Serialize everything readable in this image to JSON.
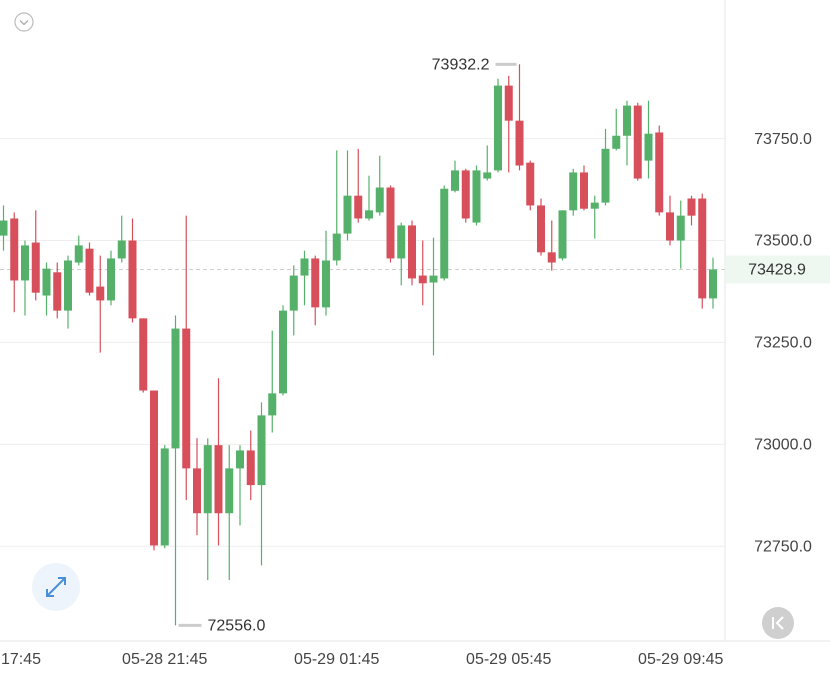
{
  "chart_data": {
    "type": "candlestick",
    "categories": [
      "17:45",
      null,
      null,
      null,
      null,
      null,
      null,
      null,
      null,
      null,
      null,
      null,
      null,
      null,
      null,
      "05-28 21:45",
      null,
      null,
      null,
      null,
      null,
      null,
      null,
      null,
      null,
      null,
      null,
      null,
      null,
      null,
      null,
      "05-29 01:45",
      null,
      null,
      null,
      null,
      null,
      null,
      null,
      null,
      null,
      null,
      null,
      null,
      null,
      null,
      null,
      "05-29 05:45",
      null,
      null,
      null,
      null,
      null,
      null,
      null,
      null,
      null,
      null,
      null,
      null,
      null,
      null,
      null,
      "05-29 09:45",
      null,
      null,
      null
    ],
    "open": [
      73512,
      73554,
      73402,
      73495,
      73365,
      73422,
      73328,
      73446,
      73480,
      73387,
      73353,
      73456,
      73500,
      73309,
      73132,
      72752,
      72990,
      73284,
      72941,
      72831,
      72998,
      72831,
      72941,
      72985,
      72900,
      73071,
      73125,
      73328,
      73414,
      73456,
      73336,
      73451,
      73517,
      73610,
      73554,
      73569,
      73630,
      73456,
      73537,
      73414,
      73397,
      73407,
      73622,
      73672,
      73544,
      73652,
      73672,
      73880,
      73794,
      73691,
      73586,
      73471,
      73456,
      73574,
      73667,
      73578,
      73593,
      73725,
      73757,
      73831,
      73696,
      73765,
      73569,
      73500,
      73603,
      73603,
      73358
    ],
    "high": [
      73586,
      73569,
      73500,
      73574,
      73446,
      73446,
      73463,
      73512,
      73495,
      73463,
      73475,
      73561,
      73554,
      73309,
      73132,
      72998,
      73316,
      73561,
      73015,
      73015,
      73162,
      72998,
      72998,
      73034,
      73103,
      73279,
      73341,
      73439,
      73475,
      73463,
      73524,
      73721,
      73721,
      73725,
      73659,
      73708,
      73635,
      73544,
      73549,
      73500,
      73507,
      73635,
      73696,
      73676,
      73684,
      73733,
      73897,
      73904,
      73932.2,
      73696,
      73603,
      73549,
      73574,
      73676,
      73684,
      73610,
      73774,
      73823,
      73843,
      73838,
      73843,
      73782,
      73610,
      73598,
      73610,
      73615,
      73458
    ],
    "low": [
      73475,
      73324,
      73316,
      73353,
      73316,
      73309,
      73284,
      73439,
      73365,
      73225,
      73341,
      73446,
      73299,
      73127,
      72740,
      72745,
      72556,
      72863,
      72777,
      72667,
      72752,
      72667,
      72801,
      72863,
      72703,
      73029,
      73120,
      73267,
      73341,
      73292,
      73316,
      73439,
      73500,
      73544,
      73549,
      73561,
      73446,
      73390,
      73390,
      73341,
      73218,
      73402,
      73618,
      73544,
      73537,
      73647,
      73667,
      73667,
      73672,
      73574,
      73463,
      73426,
      73451,
      73561,
      73574,
      73505,
      73586,
      73721,
      73684,
      73647,
      73652,
      73561,
      73488,
      73431,
      73537,
      73333,
      73333
    ],
    "close": [
      73549,
      73402,
      73488,
      73372,
      73431,
      73328,
      73451,
      73488,
      73372,
      73353,
      73456,
      73500,
      73309,
      73132,
      72752,
      72990,
      73284,
      72941,
      72831,
      72998,
      72831,
      72941,
      72985,
      72900,
      73071,
      73125,
      73328,
      73414,
      73456,
      73336,
      73451,
      73517,
      73610,
      73554,
      73574,
      73630,
      73456,
      73537,
      73407,
      73395,
      73414,
      73627,
      73672,
      73554,
      73672,
      73667,
      73880,
      73794,
      73684,
      73586,
      73471,
      73446,
      73574,
      73667,
      73578,
      73593,
      73725,
      73757,
      73831,
      73652,
      73762,
      73569,
      73500,
      73561,
      73561,
      73358,
      73428.9
    ],
    "up_color": "#55b16a",
    "down_color": "#d64f5a",
    "ylim": [
      72520,
      74090
    ],
    "yticks": [
      {
        "value": 72750,
        "label": "72750.0"
      },
      {
        "value": 73000,
        "label": "73000.0"
      },
      {
        "value": 73250,
        "label": "73250.0"
      },
      {
        "value": 73500,
        "label": "73500.0"
      },
      {
        "value": 73750,
        "label": "73750.0"
      }
    ],
    "grid": true,
    "high_marker": {
      "value": 73932.2,
      "label": "73932.2"
    },
    "low_marker": {
      "value": 72556,
      "label": "72556.0"
    },
    "last_price": 73428.9
  }
}
